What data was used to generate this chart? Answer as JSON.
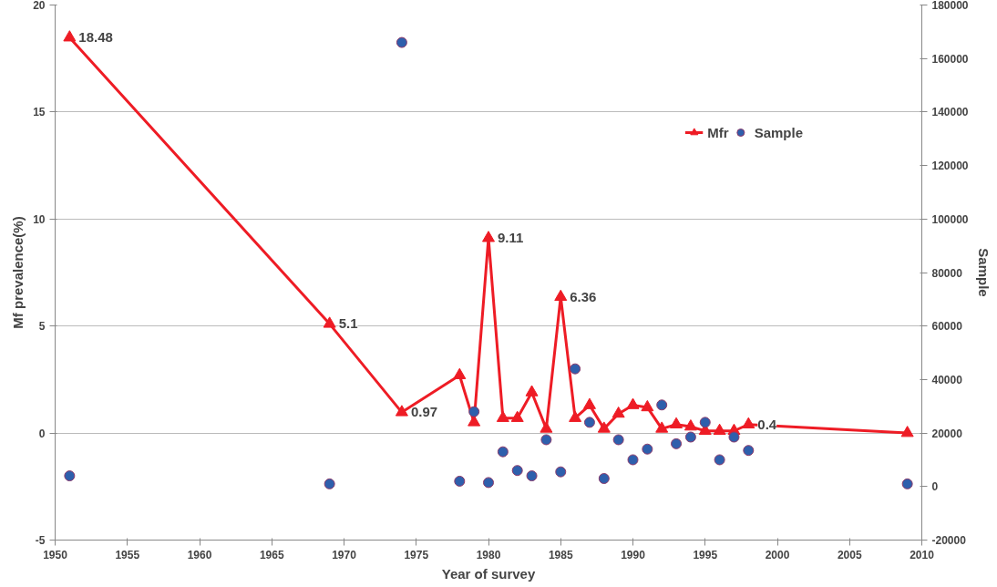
{
  "chart_data": {
    "type": "line",
    "xlabel": "Year of survey",
    "ylabel": "Mf prevalence(%)",
    "y2label": "Sample",
    "xlim": [
      1950,
      2010
    ],
    "xticks": [
      1950,
      1955,
      1960,
      1965,
      1970,
      1975,
      1980,
      1985,
      1990,
      1995,
      2000,
      2005,
      2010
    ],
    "ylim": [
      -5,
      20
    ],
    "yticks": [
      -5,
      0,
      5,
      10,
      15,
      20
    ],
    "y2lim": [
      -20000,
      180000
    ],
    "y2ticks": [
      -20000,
      0,
      20000,
      40000,
      60000,
      80000,
      100000,
      120000,
      140000,
      160000,
      180000
    ],
    "grid": "y",
    "legend": "top",
    "series": [
      {
        "name": "Mfr",
        "marker": "triangle",
        "color": "#ee1c25",
        "x": [
          1951,
          1969,
          1974,
          1978,
          1979,
          1980,
          1981,
          1982,
          1983,
          1984,
          1985,
          1986,
          1987,
          1988,
          1989,
          1990,
          1991,
          1992,
          1993,
          1994,
          1995,
          1996,
          1997,
          1998,
          2009
        ],
        "values": [
          18.48,
          5.1,
          0.97,
          2.7,
          0.5,
          9.11,
          0.7,
          0.7,
          1.9,
          0.2,
          6.36,
          0.7,
          1.3,
          0.2,
          0.9,
          1.3,
          1.2,
          0.2,
          0.4,
          0.3,
          0.1,
          0.1,
          0.1,
          0.4,
          0
        ],
        "value_labels": [
          "18.48",
          "5.1",
          "0.97",
          null,
          null,
          "9.11",
          null,
          null,
          null,
          null,
          "6.36",
          null,
          null,
          null,
          null,
          null,
          null,
          null,
          null,
          null,
          null,
          null,
          null,
          "0.4",
          null
        ]
      },
      {
        "name": "Sample",
        "type": "scatter",
        "marker": "circle",
        "axis": "y2",
        "color": "#2e5fac",
        "x": [
          1951,
          1969,
          1974,
          1978,
          1979,
          1980,
          1981,
          1982,
          1983,
          1984,
          1985,
          1986,
          1987,
          1988,
          1989,
          1990,
          1991,
          1992,
          1993,
          1994,
          1995,
          1996,
          1997,
          1998,
          2009
        ],
        "values": [
          4000,
          1000,
          166000,
          2000,
          28000,
          1500,
          13000,
          6000,
          4000,
          17500,
          5500,
          44000,
          24000,
          3000,
          17500,
          10000,
          14000,
          30500,
          16000,
          18500,
          24000,
          10000,
          18500,
          13500,
          1000
        ]
      }
    ]
  }
}
